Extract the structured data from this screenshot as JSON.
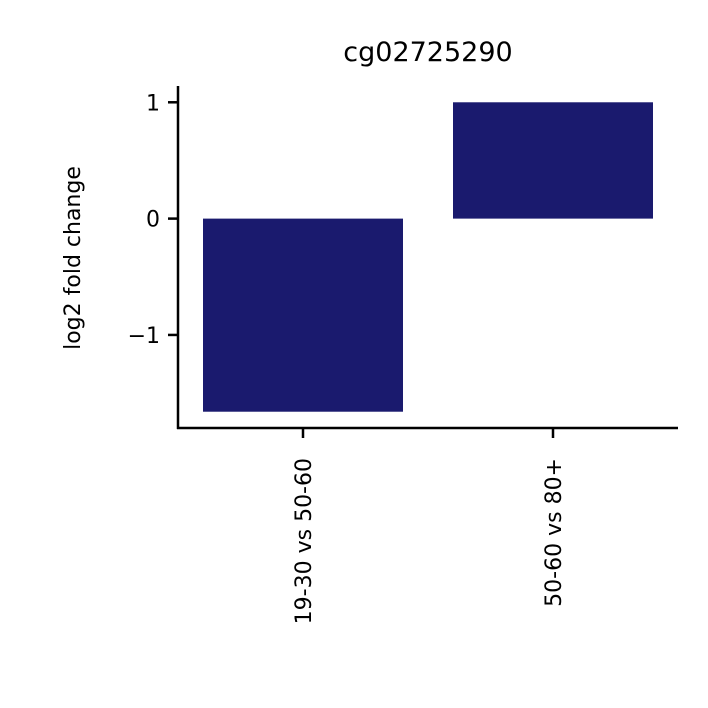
{
  "chart_data": {
    "type": "bar",
    "title": "cg02725290",
    "xlabel": "",
    "ylabel": "log2 fold change",
    "categories": [
      "19-30 vs 50-60",
      "50-60 vs 80+"
    ],
    "values": [
      -1.66,
      1.0
    ],
    "ylim": [
      -1.8,
      1.14
    ],
    "yticks": [
      1,
      0,
      -1
    ],
    "ytick_labels": [
      "1",
      "0",
      "−1"
    ],
    "bar_color": "#1a1a6e",
    "grid": false,
    "legend": "none"
  }
}
